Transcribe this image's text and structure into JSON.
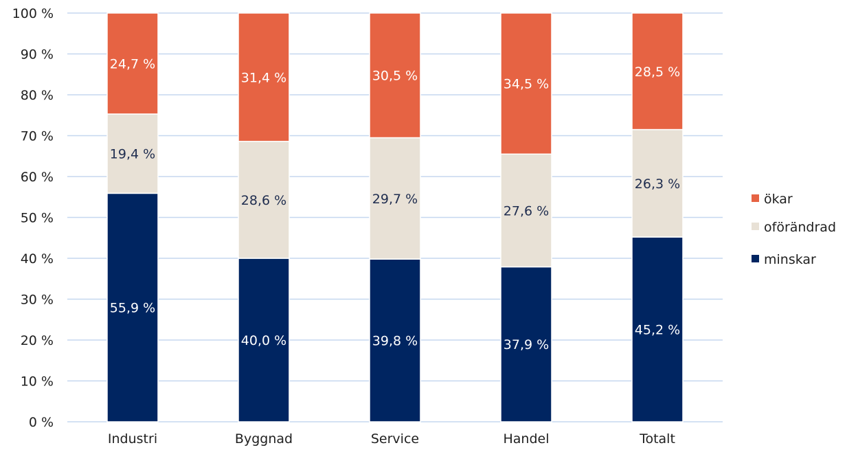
{
  "chart_data": {
    "type": "bar",
    "stacked": true,
    "categories": [
      "Industri",
      "Byggnad",
      "Service",
      "Handel",
      "Totalt"
    ],
    "series": [
      {
        "name": "minskar",
        "color": "#002561",
        "label_color": "#ffffff",
        "values": [
          55.9,
          40.0,
          39.8,
          37.9,
          45.2
        ],
        "labels": [
          "55,9 %",
          "40,0 %",
          "39,8 %",
          "37,9 %",
          "45,2 %"
        ]
      },
      {
        "name": "oförändrad",
        "color": "#e8e1d6",
        "label_color": "#1f2d4f",
        "values": [
          19.4,
          28.6,
          29.7,
          27.6,
          26.3
        ],
        "labels": [
          "19,4 %",
          "28,6 %",
          "29,7 %",
          "27,6 %",
          "26,3 %"
        ]
      },
      {
        "name": "ökar",
        "color": "#e66343",
        "label_color": "#ffffff",
        "values": [
          24.7,
          31.4,
          30.5,
          34.5,
          28.5
        ],
        "labels": [
          "24,7 %",
          "31,4 %",
          "30,5 %",
          "34,5 %",
          "28,5 %"
        ]
      }
    ],
    "yticks": [
      0,
      10,
      20,
      30,
      40,
      50,
      60,
      70,
      80,
      90,
      100
    ],
    "ytick_labels": [
      "0 %",
      "10 %",
      "20 %",
      "30 %",
      "40 %",
      "50 %",
      "60 %",
      "70 %",
      "80 %",
      "90 %",
      "100 %"
    ],
    "ylim": [
      0,
      100
    ],
    "grid": true,
    "grid_color": "#c5d7ef",
    "legend_position": "right",
    "legend_order": [
      "ökar",
      "oförändrad",
      "minskar"
    ]
  }
}
